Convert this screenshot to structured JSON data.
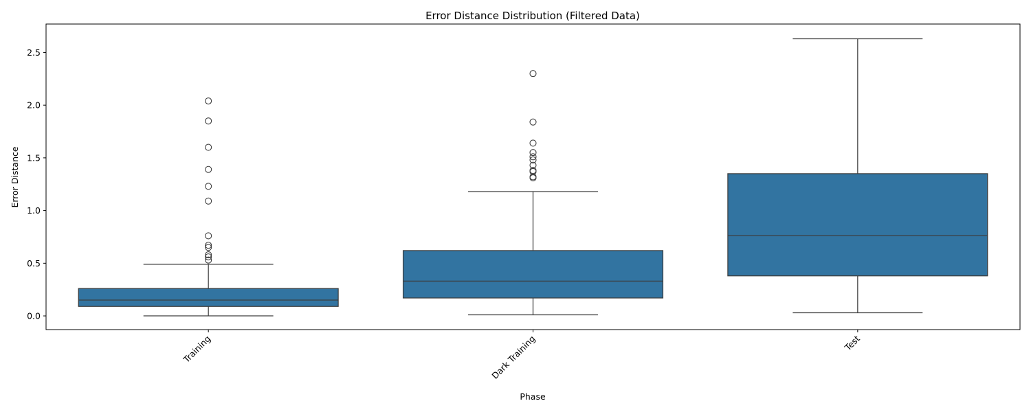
{
  "chart_data": {
    "type": "box",
    "title": "Error Distance Distribution (Filtered Data)",
    "xlabel": "Phase",
    "ylabel": "Error Distance",
    "ylim": [
      -0.13,
      2.77
    ],
    "yticks": [
      0.0,
      0.5,
      1.0,
      1.5,
      2.0,
      2.5
    ],
    "ytick_labels": [
      "0.0",
      "0.5",
      "1.0",
      "1.5",
      "2.0",
      "2.5"
    ],
    "x_tick_rotation": 45,
    "grid": false,
    "legend": "none",
    "box_color": "#3274a1",
    "edge_color": "#3d3d3d",
    "categories": [
      "Training",
      "Dark Training",
      "Test"
    ],
    "boxes": [
      {
        "category": "Training",
        "whisker_low": 0.0,
        "q1": 0.09,
        "median": 0.15,
        "q3": 0.26,
        "whisker_high": 0.49,
        "outliers": [
          0.53,
          0.56,
          0.58,
          0.65,
          0.67,
          0.76,
          1.09,
          1.23,
          1.39,
          1.6,
          1.85,
          2.04
        ]
      },
      {
        "category": "Dark Training",
        "whisker_low": 0.01,
        "q1": 0.17,
        "median": 0.33,
        "q3": 0.62,
        "whisker_high": 1.18,
        "outliers": [
          1.31,
          1.32,
          1.37,
          1.38,
          1.43,
          1.48,
          1.51,
          1.55,
          1.64,
          1.84,
          2.3
        ]
      },
      {
        "category": "Test",
        "whisker_low": 0.03,
        "q1": 0.38,
        "median": 0.76,
        "q3": 1.35,
        "whisker_high": 2.63,
        "outliers": []
      }
    ]
  }
}
